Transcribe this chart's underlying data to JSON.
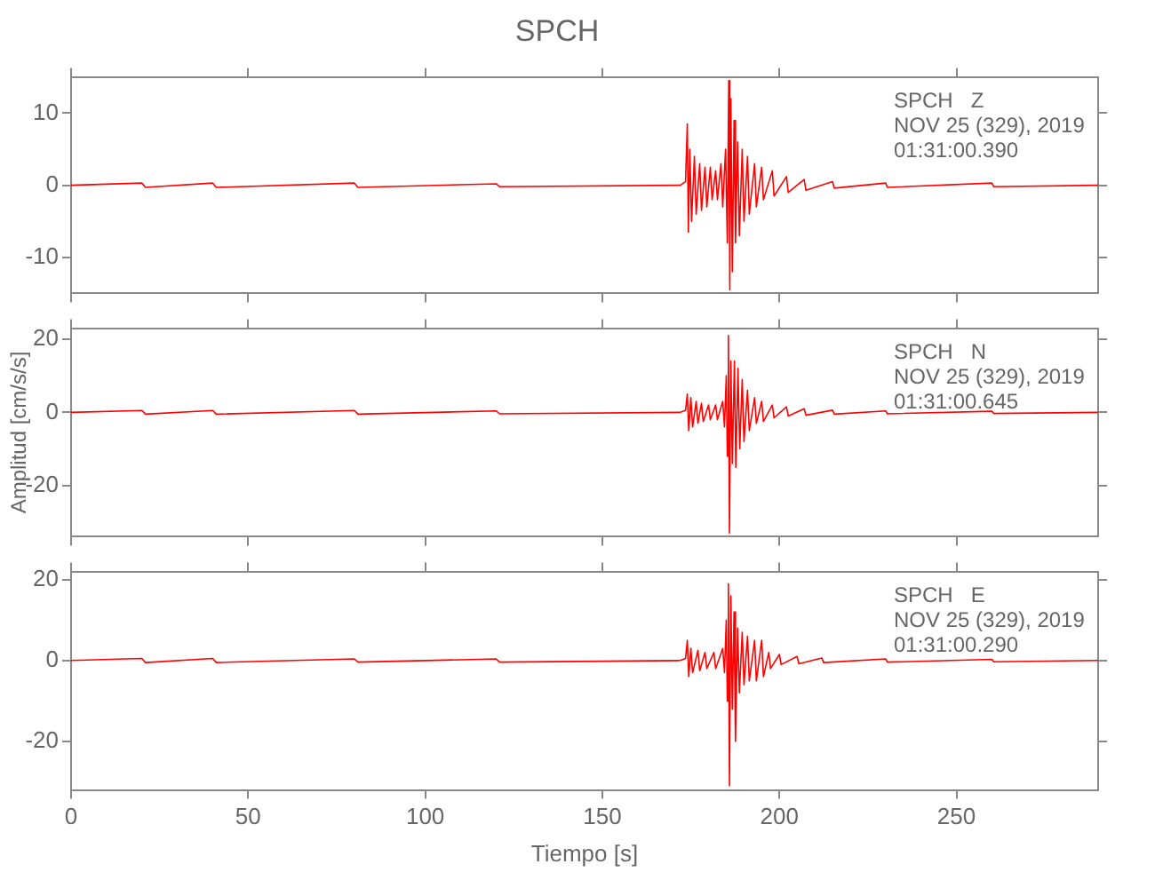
{
  "chart_data": [
    {
      "type": "line",
      "title": "SPCH",
      "annotations": [
        "SPCH   Z",
        "NOV 25 (329), 2019",
        "01:31:00.390"
      ],
      "marker": "none",
      "tick_labels": "y",
      "xlim": [
        0,
        290
      ],
      "xticks": [
        0,
        50,
        100,
        150,
        200,
        250
      ],
      "ylim": [
        -15,
        15
      ],
      "yticks": [
        -10,
        0,
        10
      ],
      "x": [
        0,
        20,
        21,
        40,
        41,
        80,
        81,
        120,
        121,
        172,
        173.5,
        174,
        174.3,
        174.7,
        175.2,
        176,
        176.5,
        177.5,
        178,
        179,
        179.5,
        180.5,
        181,
        182,
        182.5,
        183.5,
        184,
        184.8,
        185.3,
        185.7,
        186,
        186.3,
        186.7,
        187.2,
        187.6,
        188.2,
        188.7,
        189.5,
        190,
        191,
        191.5,
        193,
        193.5,
        195,
        195.5,
        198,
        198.5,
        202,
        202.5,
        207,
        207.5,
        215,
        215.5,
        230,
        230.5,
        260,
        260.5,
        290
      ],
      "series": [
        {
          "color": "#ff0000",
          "values": [
            0,
            0.3,
            -0.3,
            0.3,
            -0.3,
            0.3,
            -0.3,
            0.2,
            -0.2,
            0,
            0.5,
            8.5,
            -6.5,
            5,
            -5,
            4,
            -4,
            3,
            -3.5,
            2.5,
            -3,
            2.5,
            -2,
            2,
            -2,
            3,
            -3,
            5,
            -8,
            14.5,
            -14.5,
            12,
            -12,
            9,
            -8,
            6,
            -7,
            5,
            -5,
            4,
            -4,
            3,
            -3,
            2.5,
            -2,
            2,
            -1.5,
            1.2,
            -1,
            0.8,
            -0.7,
            0.5,
            -0.4,
            0.3,
            -0.3,
            0.3,
            -0.2,
            0
          ]
        }
      ]
    },
    {
      "type": "line",
      "ylabel": "Amplitud [cm/s/s]",
      "annotations": [
        "SPCH   N",
        "NOV 25 (329), 2019",
        "01:31:00.645"
      ],
      "marker": "none",
      "tick_labels": "y",
      "xlim": [
        0,
        290
      ],
      "xticks": [
        0,
        50,
        100,
        150,
        200,
        250
      ],
      "ylim": [
        -34,
        23
      ],
      "yticks": [
        -20,
        0,
        20
      ],
      "x": [
        0,
        20,
        21,
        40,
        41,
        80,
        81,
        120,
        121,
        172,
        173.5,
        174,
        174.4,
        175,
        175.5,
        176.5,
        177,
        178,
        178.5,
        180,
        180.5,
        182,
        182.5,
        184,
        184.5,
        185,
        185.3,
        185.6,
        185.9,
        186.3,
        186.7,
        187.3,
        187.7,
        188.3,
        188.8,
        189.5,
        190,
        191,
        191.5,
        193,
        193.5,
        195,
        195.5,
        198,
        198.5,
        202,
        202.5,
        207,
        207.5,
        215,
        215.5,
        230,
        230.5,
        260,
        260.5,
        290
      ],
      "series": [
        {
          "color": "#ff0000",
          "values": [
            0,
            0.5,
            -0.5,
            0.5,
            -0.5,
            0.5,
            -0.5,
            0.4,
            -0.4,
            0,
            0.5,
            5,
            -5,
            4,
            -4,
            3,
            -3,
            2.5,
            -2.5,
            2,
            -2,
            2,
            -2,
            3,
            -4,
            10,
            -12,
            21,
            -33,
            14,
            -14,
            14,
            -15,
            12,
            -10,
            9,
            -8,
            6,
            -5,
            4,
            -3,
            3,
            -2.5,
            2,
            -1.5,
            1.5,
            -1,
            1,
            -0.8,
            0.6,
            -0.5,
            0.4,
            -0.4,
            0.3,
            -0.3,
            0
          ]
        }
      ]
    },
    {
      "type": "line",
      "xlabel": "Tiempo [s]",
      "annotations": [
        "SPCH   E",
        "NOV 25 (329), 2019",
        "01:31:00.290"
      ],
      "marker": "none",
      "xlim": [
        0,
        290
      ],
      "xticks": [
        0,
        50,
        100,
        150,
        200,
        250
      ],
      "ylim": [
        -32,
        22
      ],
      "yticks": [
        -20,
        0,
        20
      ],
      "x": [
        0,
        20,
        21,
        40,
        41,
        80,
        81,
        120,
        121,
        172,
        173.5,
        174,
        174.4,
        175,
        175.5,
        177,
        177.5,
        179,
        179.5,
        181.5,
        182,
        184,
        184.5,
        185,
        185.3,
        185.6,
        185.9,
        186.3,
        186.7,
        187.2,
        187.6,
        188.2,
        188.7,
        189.5,
        190,
        191,
        191.5,
        193,
        193.5,
        195,
        195.5,
        197,
        197.5,
        200,
        200.5,
        205,
        205.5,
        212,
        212.5,
        230,
        230.5,
        260,
        260.5,
        290
      ],
      "series": [
        {
          "color": "#ff0000",
          "values": [
            0,
            0.5,
            -0.5,
            0.5,
            -0.5,
            0.4,
            -0.4,
            0.4,
            -0.4,
            0,
            0.5,
            5,
            -4,
            3,
            -3,
            2.5,
            -2.5,
            2,
            -2,
            2,
            -2,
            3,
            -3,
            10,
            -10,
            19,
            -31,
            16,
            -12,
            12,
            -20,
            8,
            -8,
            7,
            -6,
            6,
            -5,
            5,
            -5,
            5,
            -4,
            2,
            -2,
            1.5,
            -1,
            1,
            -0.8,
            0.6,
            -0.5,
            0.4,
            -0.4,
            0.3,
            -0.3,
            0
          ]
        }
      ]
    }
  ]
}
